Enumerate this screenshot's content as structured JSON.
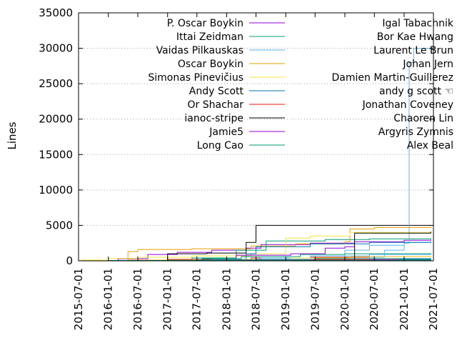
{
  "chart_data": {
    "type": "line",
    "title": "",
    "xlabel": "",
    "ylabel": "Lines",
    "xlim": [
      "2015-07-01",
      "2021-07-01"
    ],
    "ylim": [
      0,
      35000
    ],
    "y_ticks": [
      0,
      5000,
      10000,
      15000,
      20000,
      25000,
      30000,
      35000
    ],
    "x_ticks": [
      "2015-07-01",
      "2016-01-01",
      "2016-07-01",
      "2017-01-01",
      "2017-07-01",
      "2018-01-01",
      "2018-07-01",
      "2019-01-01",
      "2019-07-01",
      "2020-01-01",
      "2020-07-01",
      "2021-01-01",
      "2021-07-01"
    ],
    "grid": "horizontal dotted",
    "legend_placement": "top, two columns",
    "series": [
      {
        "name": "P. Oscar Boykin",
        "color": "#9400d3",
        "points": [
          [
            "2015-07-01",
            0
          ],
          [
            "2016-03-01",
            300
          ],
          [
            "2016-09-01",
            900
          ],
          [
            "2017-03-01",
            1200
          ],
          [
            "2017-10-01",
            1500
          ],
          [
            "2018-05-01",
            1800
          ],
          [
            "2018-08-01",
            2300
          ],
          [
            "2019-06-01",
            2500
          ],
          [
            "2020-03-01",
            2700
          ],
          [
            "2021-01-01",
            2900
          ],
          [
            "2021-06-15",
            3000
          ]
        ]
      },
      {
        "name": "Ittai Zeidman",
        "color": "#009e73",
        "points": [
          [
            "2016-06-01",
            0
          ],
          [
            "2017-06-01",
            400
          ],
          [
            "2018-03-01",
            1500
          ],
          [
            "2018-09-01",
            2800
          ],
          [
            "2019-09-01",
            3000
          ],
          [
            "2020-06-01",
            3100
          ],
          [
            "2021-06-15",
            3200
          ]
        ]
      },
      {
        "name": "Vaidas Pilkauskas",
        "color": "#56b4e9",
        "points": [
          [
            "2019-06-01",
            0
          ],
          [
            "2019-08-01",
            500
          ],
          [
            "2020-01-01",
            1500
          ],
          [
            "2020-06-01",
            2200
          ],
          [
            "2021-01-01",
            2600
          ],
          [
            "2021-06-15",
            2700
          ]
        ]
      },
      {
        "name": "Oscar Boykin",
        "color": "#e69f00",
        "points": [
          [
            "2015-11-01",
            0
          ],
          [
            "2016-05-01",
            1300
          ],
          [
            "2016-07-01",
            1600
          ],
          [
            "2017-06-01",
            1700
          ],
          [
            "2018-06-01",
            2100
          ],
          [
            "2019-03-01",
            2400
          ],
          [
            "2020-01-01",
            2700
          ],
          [
            "2020-02-01",
            4500
          ],
          [
            "2020-07-01",
            4700
          ],
          [
            "2021-06-15",
            4800
          ]
        ]
      },
      {
        "name": "Simonas Pinevičius",
        "color": "#f0e442",
        "points": [
          [
            "2015-07-15",
            100
          ],
          [
            "2016-01-01",
            350
          ],
          [
            "2016-07-01",
            500
          ],
          [
            "2017-06-01",
            700
          ],
          [
            "2018-06-01",
            1000
          ],
          [
            "2019-01-01",
            3200
          ],
          [
            "2019-06-01",
            3500
          ],
          [
            "2020-02-01",
            4000
          ],
          [
            "2021-06-15",
            4200
          ]
        ]
      },
      {
        "name": "Andy Scott",
        "color": "#0072b2",
        "points": [
          [
            "2017-07-01",
            0
          ],
          [
            "2018-05-01",
            1000
          ],
          [
            "2018-07-01",
            2000
          ],
          [
            "2019-06-01",
            2400
          ],
          [
            "2020-06-01",
            2600
          ],
          [
            "2021-06-15",
            2700
          ]
        ]
      },
      {
        "name": "Or Shachar",
        "color": "#e51e10",
        "points": [
          [
            "2016-03-01",
            0
          ],
          [
            "2017-01-01",
            200
          ],
          [
            "2018-06-01",
            400
          ],
          [
            "2019-06-01",
            500
          ],
          [
            "2020-06-01",
            600
          ],
          [
            "2021-06-15",
            650
          ]
        ]
      },
      {
        "name": "ianoc-stripe",
        "color": "#000000",
        "points": [
          [
            "2016-12-01",
            0
          ],
          [
            "2017-01-01",
            1000
          ],
          [
            "2017-09-01",
            1100
          ],
          [
            "2018-05-01",
            2600
          ],
          [
            "2018-07-01",
            5000
          ],
          [
            "2021-06-15",
            5000
          ]
        ]
      },
      {
        "name": "Jamie5",
        "color": "#9400d3",
        "points": [
          [
            "2017-09-01",
            0
          ],
          [
            "2018-03-01",
            800
          ],
          [
            "2019-02-01",
            1000
          ],
          [
            "2019-09-01",
            1800
          ],
          [
            "2020-01-01",
            2000
          ],
          [
            "2020-03-01",
            2000
          ]
        ]
      },
      {
        "name": "Long Cao",
        "color": "#009e73",
        "points": [
          [
            "2017-01-01",
            0
          ],
          [
            "2017-08-01",
            300
          ],
          [
            "2018-04-01",
            600
          ],
          [
            "2019-04-01",
            900
          ],
          [
            "2020-01-01",
            1000
          ],
          [
            "2021-06-15",
            1100
          ]
        ]
      },
      {
        "name": "Igal Tabachnik",
        "color": "#56b4e9",
        "points": [
          [
            "2017-04-01",
            0
          ],
          [
            "2017-10-01",
            200
          ],
          [
            "2018-08-01",
            400
          ],
          [
            "2019-06-01",
            700
          ],
          [
            "2020-06-01",
            900
          ],
          [
            "2021-06-15",
            1000
          ]
        ]
      },
      {
        "name": "Bor Kae Hwang",
        "color": "#e69f00",
        "points": [
          [
            "2016-02-01",
            0
          ],
          [
            "2016-05-01",
            100
          ],
          [
            "2017-06-01",
            150
          ],
          [
            "2019-06-01",
            200
          ],
          [
            "2021-06-15",
            250
          ]
        ]
      },
      {
        "name": "Laurent Le Brun",
        "color": "#56b4e9",
        "points": [
          [
            "2020-01-01",
            0
          ],
          [
            "2020-06-01",
            500
          ],
          [
            "2020-09-01",
            1500
          ],
          [
            "2021-01-01",
            2500
          ],
          [
            "2021-02-01",
            28000
          ],
          [
            "2021-03-01",
            30000
          ],
          [
            "2021-06-15",
            30000
          ]
        ]
      },
      {
        "name": "Johan Jern",
        "color": "#f0e442",
        "points": [
          [
            "2017-05-01",
            0
          ],
          [
            "2018-04-01",
            200
          ],
          [
            "2019-02-01",
            400
          ],
          [
            "2020-02-01",
            600
          ],
          [
            "2021-06-15",
            700
          ]
        ]
      },
      {
        "name": "Damien Martin-Guillerez",
        "color": "#0072b2",
        "points": [
          [
            "2016-07-01",
            0
          ],
          [
            "2017-07-01",
            150
          ],
          [
            "2018-07-01",
            200
          ],
          [
            "2019-07-01",
            300
          ],
          [
            "2021-06-15",
            350
          ]
        ]
      },
      {
        "name": "andy g scott ☜",
        "color": "#e51e10",
        "points": [
          [
            "2016-05-01",
            0
          ],
          [
            "2017-06-01",
            100
          ],
          [
            "2019-06-01",
            150
          ],
          [
            "2021-06-15",
            200
          ]
        ]
      },
      {
        "name": "Jonathan Coveney",
        "color": "#000000",
        "points": [
          [
            "2020-01-01",
            0
          ],
          [
            "2020-03-01",
            3900
          ],
          [
            "2021-06-15",
            4100
          ]
        ]
      },
      {
        "name": "Chaoren Lin",
        "color": "#9400d3",
        "points": [
          [
            "2018-09-01",
            0
          ],
          [
            "2019-06-01",
            100
          ],
          [
            "2020-06-01",
            150
          ],
          [
            "2021-06-15",
            200
          ]
        ]
      },
      {
        "name": "Argyris Zymnis",
        "color": "#009e73",
        "points": [
          [
            "2015-08-01",
            0
          ],
          [
            "2016-01-01",
            50
          ],
          [
            "2017-01-01",
            80
          ],
          [
            "2021-06-15",
            100
          ]
        ]
      },
      {
        "name": "Alex Beal",
        "color": "#009e73",
        "points": [
          [
            "2020-09-01",
            0
          ],
          [
            "2020-12-01",
            200
          ],
          [
            "2021-06-15",
            300
          ]
        ]
      }
    ]
  }
}
